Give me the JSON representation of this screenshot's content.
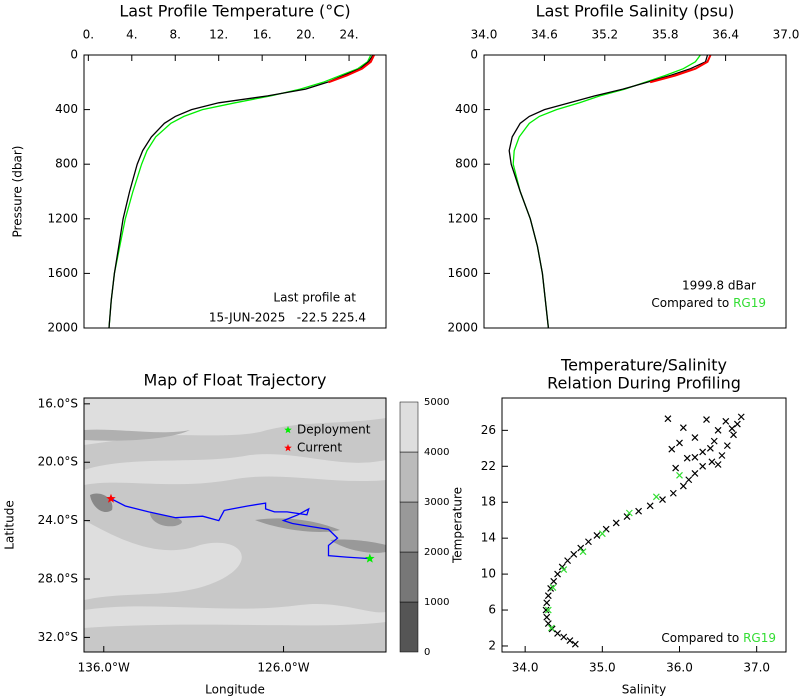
{
  "chart_data": [
    {
      "type": "line",
      "title": "Last Profile Temperature (°C)",
      "ylabel": "Pressure (dbar)",
      "xlim": [
        -0.4,
        27.4
      ],
      "xticks": [
        {
          "value": 0,
          "label": "0."
        },
        {
          "value": 4,
          "label": "4."
        },
        {
          "value": 8,
          "label": "8."
        },
        {
          "value": 12,
          "label": "12."
        },
        {
          "value": 16,
          "label": "16."
        },
        {
          "value": 20,
          "label": "20."
        },
        {
          "value": 24,
          "label": "24."
        }
      ],
      "ylim": [
        0,
        2000
      ],
      "yticks": [
        0,
        400,
        800,
        1200,
        1600,
        2000
      ],
      "y_inverted": true,
      "y": [
        0,
        50,
        100,
        150,
        200,
        250,
        300,
        350,
        400,
        450,
        500,
        600,
        700,
        800,
        1000,
        1200,
        1400,
        1600,
        1800,
        2000
      ],
      "series": [
        {
          "color": "#00ee00",
          "values": [
            26.0,
            25.7,
            24.8,
            23.2,
            21.6,
            19.5,
            16.8,
            13.5,
            10.5,
            8.8,
            7.6,
            6.2,
            5.4,
            4.9,
            4.1,
            3.4,
            2.9,
            2.4,
            2.1,
            1.9
          ]
        },
        {
          "color": "#000000",
          "values": [
            26.2,
            25.8,
            25.0,
            23.5,
            22.0,
            20.0,
            16.5,
            12.0,
            9.5,
            8.0,
            7.0,
            5.8,
            5.0,
            4.5,
            3.8,
            3.2,
            2.8,
            2.4,
            2.1,
            1.9
          ]
        },
        {
          "color": "#ff0000",
          "values": [
            26.3,
            26.0,
            25.2,
            23.8,
            22.1,
            null,
            null,
            null,
            null,
            null,
            null,
            null,
            null,
            null,
            null,
            null,
            null,
            null,
            null,
            null
          ]
        }
      ],
      "annotation_lines": [
        "Last profile at",
        "15-JUN-2025   -22.5 225.4"
      ]
    },
    {
      "type": "line",
      "title": "Last Profile Salinity (psu)",
      "xlim": [
        34.0,
        37.0
      ],
      "xticks": [
        {
          "value": 34.0,
          "label": "34.0"
        },
        34.6,
        35.2,
        35.8,
        36.4,
        {
          "value": 37.0,
          "label": "37.0"
        }
      ],
      "ylim": [
        0,
        2000
      ],
      "yticks": [
        0,
        400,
        800,
        1200,
        1600,
        2000
      ],
      "y_inverted": true,
      "y": [
        0,
        50,
        100,
        150,
        200,
        250,
        300,
        350,
        400,
        450,
        500,
        600,
        700,
        800,
        1000,
        1200,
        1400,
        1600,
        1800,
        2000
      ],
      "series": [
        {
          "color": "#00ee00",
          "values": [
            36.15,
            36.1,
            35.98,
            35.8,
            35.6,
            35.4,
            35.15,
            34.95,
            34.72,
            34.55,
            34.45,
            34.35,
            34.3,
            34.29,
            34.36,
            34.46,
            34.53,
            34.58,
            34.61,
            34.64
          ]
        },
        {
          "color": "#000000",
          "values": [
            36.22,
            36.2,
            36.05,
            35.85,
            35.62,
            35.38,
            35.1,
            34.85,
            34.6,
            34.45,
            34.36,
            34.28,
            34.25,
            34.27,
            34.36,
            34.46,
            34.53,
            34.58,
            34.61,
            34.64
          ]
        },
        {
          "color": "#ff0000",
          "values": [
            36.25,
            36.22,
            36.1,
            35.9,
            35.65,
            null,
            null,
            null,
            null,
            null,
            null,
            null,
            null,
            null,
            null,
            null,
            null,
            null,
            null,
            null
          ]
        }
      ],
      "depth_note": "1999.8 dBar",
      "compared_label": "Compared to",
      "reference_name": "RG19",
      "reference_color": "#33dd33"
    },
    {
      "type": "map",
      "title": "Map of Float Trajectory",
      "xlabel": "Longitude",
      "ylabel": "Latitude",
      "xlim": [
        -137.1,
        -120.3
      ],
      "xticks": [
        {
          "value": -136,
          "label": "136.0°W"
        },
        {
          "value": -126,
          "label": "126.0°W"
        }
      ],
      "ylim": [
        -33.0,
        -15.6
      ],
      "yticks": [
        {
          "value": -16,
          "label": "16.0°S"
        },
        {
          "value": -20,
          "label": "20.0°S"
        },
        {
          "value": -24,
          "label": "24.0°S"
        },
        {
          "value": -28,
          "label": "28.0°S"
        },
        {
          "value": -32,
          "label": "32.0°S"
        }
      ],
      "colorbar": {
        "ticks": [
          0,
          1000,
          2000,
          3000,
          4000,
          5000
        ],
        "colors": [
          "#555555",
          "#777777",
          "#999999",
          "#bbbbbb",
          "#dedede"
        ]
      },
      "trajectory": {
        "color": "#0000ff",
        "lon": [
          -121.2,
          -122.5,
          -123.5,
          -123.5,
          -123.0,
          -123.5,
          -124.5,
          -125.5,
          -126.0,
          -125.2,
          -124.6,
          -124.7,
          -125.8,
          -126.5,
          -127.0,
          -127.0,
          -128.0,
          -129.3,
          -129.6,
          -130.5,
          -132.0,
          -133.5,
          -134.8,
          -135.6
        ],
        "lat": [
          -26.6,
          -26.5,
          -26.4,
          -25.7,
          -25.2,
          -24.6,
          -24.4,
          -24.2,
          -24.0,
          -23.6,
          -23.2,
          -23.6,
          -23.4,
          -23.4,
          -23.2,
          -22.8,
          -23.0,
          -23.3,
          -24.0,
          -23.7,
          -23.8,
          -23.4,
          -23.0,
          -22.5
        ]
      },
      "markers": [
        {
          "name": "Deployment",
          "color": "#00ee00",
          "lon": -121.2,
          "lat": -26.6
        },
        {
          "name": "Current",
          "color": "#ff0000",
          "lon": -135.6,
          "lat": -22.5
        }
      ]
    },
    {
      "type": "scatter",
      "title": [
        "Temperature/Salinity",
        "Relation During Profiling"
      ],
      "xlabel": "Salinity",
      "ylabel": "Temperature",
      "xlim": [
        33.7,
        37.38
      ],
      "xticks": [
        {
          "value": 34.0,
          "label": "34.0"
        },
        {
          "value": 35.0,
          "label": "35.0"
        },
        {
          "value": 36.0,
          "label": "36.0"
        },
        {
          "value": 37.0,
          "label": "37.0"
        }
      ],
      "ylim": [
        1.33,
        29.6
      ],
      "yticks": [
        2,
        6,
        10,
        14,
        18,
        22,
        26
      ],
      "series": [
        {
          "color": "#000000",
          "x": [
            34.65,
            34.58,
            34.5,
            34.42,
            34.35,
            34.3,
            34.28,
            34.27,
            34.28,
            34.3,
            34.33,
            34.37,
            34.42,
            34.48,
            34.55,
            34.63,
            34.72,
            34.82,
            34.93,
            35.05,
            35.18,
            35.32,
            35.47,
            35.62,
            35.78,
            35.92,
            36.05,
            36.12,
            36.2,
            35.95,
            36.3,
            36.42,
            36.1,
            36.55,
            36.3,
            35.9,
            36.62,
            36.45,
            36.2,
            36.7,
            36.5,
            36.05,
            36.75,
            36.6,
            36.35,
            36.8,
            35.85,
            36.68,
            36.4,
            36.2,
            36.5,
            36.0
          ],
          "y": [
            2.2,
            2.6,
            3.0,
            3.4,
            3.9,
            4.5,
            5.2,
            6.0,
            6.8,
            7.6,
            8.4,
            9.2,
            10.0,
            10.8,
            11.5,
            12.2,
            12.9,
            13.6,
            14.3,
            15.0,
            15.7,
            16.4,
            17.0,
            17.6,
            18.3,
            19.0,
            19.8,
            20.5,
            21.2,
            21.8,
            22.0,
            22.5,
            22.9,
            23.2,
            23.6,
            23.9,
            24.3,
            24.8,
            25.2,
            25.5,
            26.0,
            26.3,
            26.7,
            27.0,
            27.2,
            27.5,
            27.3,
            26.2,
            24.0,
            23.0,
            22.2,
            24.6
          ]
        },
        {
          "color": "#33dd33",
          "x": [
            34.34,
            34.3,
            34.36,
            34.5,
            34.75,
            35.0,
            35.35,
            35.7,
            36.0
          ],
          "y": [
            4.0,
            6.0,
            8.5,
            10.5,
            12.5,
            14.5,
            16.8,
            18.6,
            21.0
          ]
        }
      ],
      "compared_label": "Compared to",
      "reference_name": "RG19",
      "reference_color": "#33dd33"
    }
  ]
}
